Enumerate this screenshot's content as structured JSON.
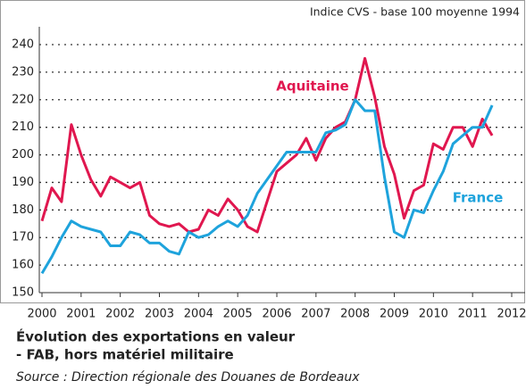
{
  "chart_data": {
    "type": "line",
    "subtitle": "Indice CVS - base 100 moyenne 1994",
    "title": "Évolution des exportations en valeur",
    "title_line2": "- FAB, hors matériel militaire",
    "source": "Source : Direction régionale des Douanes de Bordeaux",
    "x": [
      2000,
      2000.25,
      2000.5,
      2000.75,
      2001,
      2001.25,
      2001.5,
      2001.75,
      2002,
      2002.25,
      2002.5,
      2002.75,
      2003,
      2003.25,
      2003.5,
      2003.75,
      2004,
      2004.25,
      2004.5,
      2004.75,
      2005,
      2005.25,
      2005.5,
      2005.75,
      2006,
      2006.25,
      2006.5,
      2006.75,
      2007,
      2007.25,
      2007.5,
      2007.75,
      2008,
      2008.25,
      2008.5,
      2008.75,
      2009,
      2009.25,
      2009.5,
      2009.75,
      2010,
      2010.25,
      2010.5,
      2010.75,
      2011,
      2011.25,
      2011.5
    ],
    "series": [
      {
        "name": "Aquitaine",
        "color": "#e0174f",
        "values": [
          176,
          188,
          183,
          211,
          200,
          191,
          185,
          192,
          190,
          188,
          190,
          178,
          175,
          174,
          175,
          172,
          173,
          180,
          178,
          184,
          180,
          174,
          172,
          183,
          194,
          197,
          200,
          206,
          198,
          206,
          210,
          212,
          220,
          235,
          221,
          203,
          193,
          177,
          187,
          189,
          204,
          202,
          210,
          210,
          203,
          213,
          207
        ]
      },
      {
        "name": "France",
        "color": "#1ea3dc",
        "values": [
          157,
          163,
          170,
          176,
          174,
          173,
          172,
          167,
          167,
          172,
          171,
          168,
          168,
          165,
          164,
          172,
          170,
          171,
          174,
          176,
          174,
          178,
          186,
          191,
          196,
          201,
          201,
          201,
          201,
          208,
          209,
          211,
          220,
          216,
          216,
          192,
          172,
          170,
          180,
          179,
          187,
          194,
          204,
          207,
          210,
          210,
          218
        ]
      }
    ],
    "xlim": [
      2000,
      2012
    ],
    "xticks": [
      2000,
      2001,
      2002,
      2003,
      2004,
      2005,
      2006,
      2007,
      2008,
      2009,
      2010,
      2011,
      2012
    ],
    "ylim": [
      150,
      240
    ],
    "yticks": [
      150,
      160,
      170,
      180,
      190,
      200,
      210,
      220,
      230,
      240
    ],
    "grid": true
  }
}
